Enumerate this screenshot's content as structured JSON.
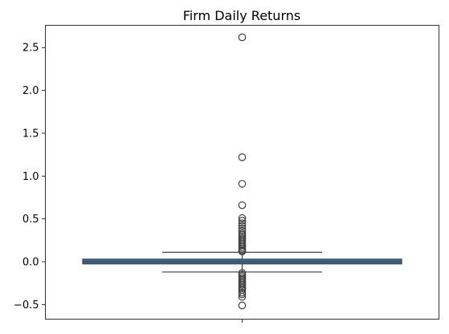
{
  "chart_data": {
    "type": "box",
    "title": "Firm Daily Returns",
    "xlabel": "",
    "ylabel": "",
    "ylim": [
      -0.67,
      2.76
    ],
    "yticks": [
      -0.5,
      0.0,
      0.5,
      1.0,
      1.5,
      2.0,
      2.5
    ],
    "ytick_labels": [
      "−0.5",
      "0.0",
      "0.5",
      "1.0",
      "1.5",
      "2.0",
      "2.5"
    ],
    "grid": false,
    "legend": "none",
    "box": {
      "q1": -0.025,
      "median": 0.0,
      "q3": 0.03,
      "whisker_low": -0.12,
      "whisker_high": 0.11,
      "fill_color": "#3a72a3",
      "outliers": [
        2.62,
        1.22,
        0.91,
        0.66,
        0.51,
        0.48,
        0.45,
        0.42,
        0.39,
        0.36,
        0.33,
        0.31,
        0.29,
        0.27,
        0.25,
        0.23,
        0.21,
        0.19,
        0.17,
        0.15,
        0.13,
        0.12,
        -0.13,
        -0.15,
        -0.17,
        -0.19,
        -0.21,
        -0.23,
        -0.25,
        -0.27,
        -0.29,
        -0.31,
        -0.33,
        -0.36,
        -0.38,
        -0.41,
        -0.51
      ]
    }
  }
}
